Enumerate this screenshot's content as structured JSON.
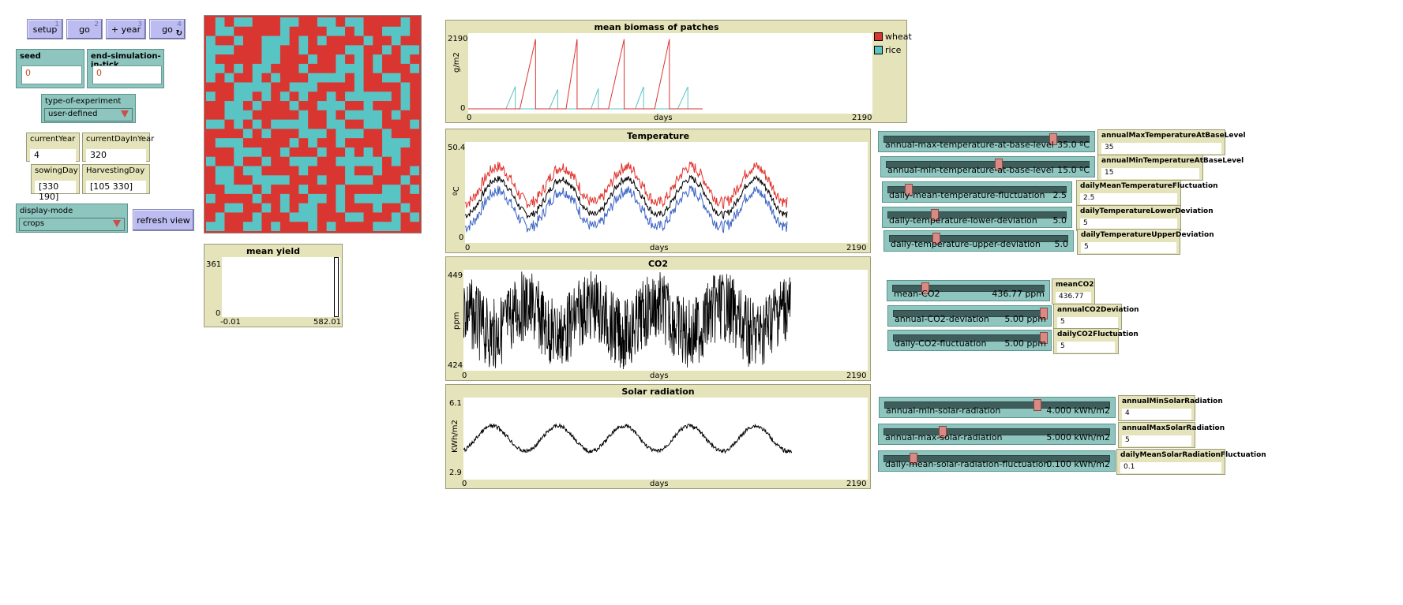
{
  "buttons": {
    "setup": {
      "label": "setup",
      "key": "1"
    },
    "go": {
      "label": "go",
      "key": "2"
    },
    "year": {
      "label": "+ year",
      "key": "3"
    },
    "go_forever": {
      "label": "go",
      "key": "4"
    },
    "refresh": {
      "label": "refresh view"
    }
  },
  "inputs": {
    "seed": {
      "label": "seed",
      "value": "0"
    },
    "end_tick": {
      "label": "end-simulation-in-tick",
      "value": "0"
    }
  },
  "choosers": {
    "experiment": {
      "label": "type-of-experiment",
      "value": "user-defined"
    },
    "display": {
      "label": "display-mode",
      "value": "crops"
    }
  },
  "monitors": {
    "currentYear": {
      "label": "currentYear",
      "value": "4"
    },
    "currentDay": {
      "label": "currentDayInYear",
      "value": "320"
    },
    "sowingDay": {
      "label": "sowingDay",
      "value": "[330 190]"
    },
    "harvestingDay": {
      "label": "HarvestingDay",
      "value": "[105 330]"
    }
  },
  "world": {
    "cols": 23,
    "rows": 23,
    "colors": {
      "wheat": "#d93632",
      "rice": "#58c4c4"
    },
    "grid": [
      "RCRCCRRRCCRRCCRCCRRRRCR",
      "RCCRRRRRCRRRRCCRCRRCCCR",
      "CRRCRRCCCRCRCRRRRCRRCRR",
      "CCCRRRCCRRCRRRRCCRRCRCC",
      "CRRRRRCCRRRCRRCRCRCRRCR",
      "CCRCRCCRRRCRRRCCCRCRRRC",
      "CRCRRCRCRRRCCCCRCRRCCRR",
      "RRRCCCCRRCCCRRRRCRRRRCR",
      "CRRCCRCRCRCRRCRCCCCCRCR",
      "RRCCRCRRRCRRCCCRRCRRRCR",
      "RRCCCRRRRRCRRCRCCCCRCRR",
      "CCRCRCRCCCCRRCCRRCCRRRC",
      "RRRRCRCRRRCCCRCCCRRCRRR",
      "RCCCRRRRRCRCRRCRRRRCCCR",
      "RRRCCCRRCRRRCRRCRCRCCRR",
      "CRRCRRCRRCCCRRCCCCCRCRR",
      "RCCRCCRRRRCRRRRCRRCRRRC",
      "RCCRRCCCCRRRCRRCCCRRRCR",
      "RRCCCRCRRRCRRRCRRRRCCRC",
      "CRRRRCRRCRRCCRCRCCCCCRR",
      "RRCCRRCRCRCCRRCRRRCRRCR",
      "RCRRRCRRRCCCRRRCCRRRCRC",
      "CCRRCCRCRRRCRCRRRRCCCRR"
    ]
  },
  "plots": {
    "yield": {
      "title": "mean yield",
      "ymax": "361",
      "ymin": "0",
      "xmin": "-0.01",
      "xmax": "582.01"
    },
    "biomass": {
      "title": "mean biomass of patches",
      "ylabel": "g/m2",
      "xlabel": "days",
      "ymax": "2190",
      "ymin": "0",
      "xmin": "0",
      "xmax": "2190",
      "legend": [
        "wheat",
        "rice"
      ]
    },
    "temperature": {
      "title": "Temperature",
      "ylabel": "ºC",
      "xlabel": "days",
      "ymax": "50.4",
      "ymin": "0",
      "xmin": "0",
      "xmax": "2190"
    },
    "co2": {
      "title": "CO2",
      "ylabel": "ppm",
      "xlabel": "days",
      "ymax": "449",
      "ymin": "424",
      "xmin": "0",
      "xmax": "2190"
    },
    "solar": {
      "title": "Solar radiation",
      "ylabel": "KWh/m2",
      "xlabel": "days",
      "ymax": "6.1",
      "ymin": "2.9",
      "xmin": "0",
      "xmax": "2190"
    }
  },
  "sliders": [
    {
      "name": "annual-max-temperature-at-base-level",
      "value": "35.0 ºC",
      "pos": 0.83,
      "box_label": "annualMaxTemperatureAtBaseLevel",
      "box_value": "35"
    },
    {
      "name": "annual-min-temperature-at-base-level",
      "value": "15.0 ºC",
      "pos": 0.55,
      "box_label": "annualMinTemperatureAtBaseLevel",
      "box_value": "15"
    },
    {
      "name": "daily-mean-temperature-fluctuation",
      "value": "2.5",
      "pos": 0.1,
      "box_label": "dailyMeanTemperatureFluctuation",
      "box_value": "2.5"
    },
    {
      "name": "daily-temperature-lower-deviation",
      "value": "5.0",
      "pos": 0.25,
      "box_label": "dailyTemperatureLowerDeviation",
      "box_value": "5"
    },
    {
      "name": "daily-temperature-upper-deviation",
      "value": "5.0",
      "pos": 0.25,
      "box_label": "dailyTemperatureUpperDeviation",
      "box_value": "5"
    },
    {
      "name": "mean-CO2",
      "value": "436.77 ppm",
      "pos": 0.2,
      "box_label": "meanCO2",
      "box_value": "436.77"
    },
    {
      "name": "annual-CO2-deviation",
      "value": "5.00 ppm",
      "pos": 1.0,
      "box_label": "annualCO2Deviation",
      "box_value": "5"
    },
    {
      "name": "daily-CO2-fluctuation",
      "value": "5.00 ppm",
      "pos": 1.0,
      "box_label": "dailyCO2Fluctuation",
      "box_value": "5"
    },
    {
      "name": "annual-min-solar-radiation",
      "value": "4.000 kWh/m2",
      "pos": 0.68,
      "box_label": "annualMinSolarRadiation",
      "box_value": "4"
    },
    {
      "name": "annual-max-solar-radiation",
      "value": "5.000 kWh/m2",
      "pos": 0.25,
      "box_label": "annualMaxSolarRadiation",
      "box_value": "5"
    },
    {
      "name": "daily-mean-solar-radiation-fluctuation",
      "value": "0.100 kWh/m2",
      "pos": 0.12,
      "box_label": "dailyMeanSolarRadiationFluctuation",
      "box_value": "0.1"
    }
  ]
}
